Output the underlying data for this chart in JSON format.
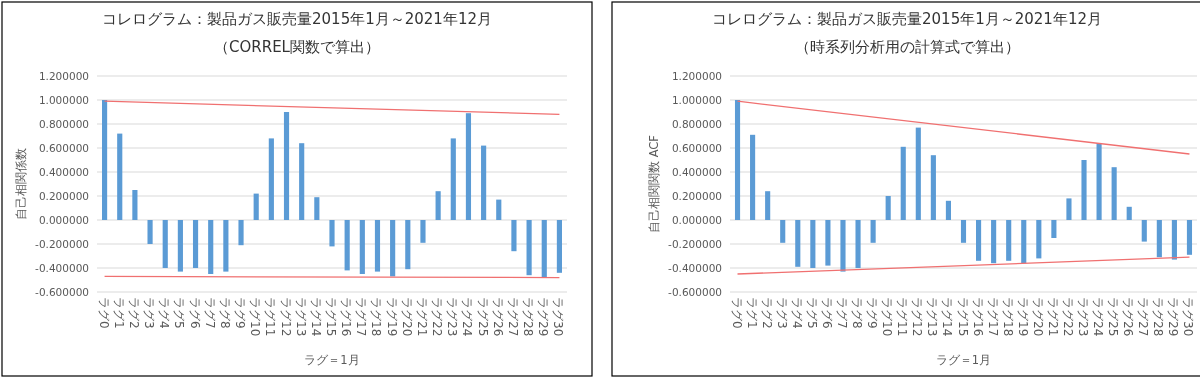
{
  "chart_data": [
    {
      "type": "bar",
      "title": "コレログラム：製品ガス販売量2015年1月～2021年12月",
      "subtitle": "（CORREL関数で算出）",
      "xlabel": "ラグ＝1月",
      "ylabel": "自己相関係数",
      "categories": [
        "ラグ0",
        "ラグ1",
        "ラグ2",
        "ラグ3",
        "ラグ4",
        "ラグ5",
        "ラグ6",
        "ラグ7",
        "ラグ8",
        "ラグ9",
        "ラグ10",
        "ラグ11",
        "ラグ12",
        "ラグ13",
        "ラグ14",
        "ラグ15",
        "ラグ16",
        "ラグ17",
        "ラグ18",
        "ラグ19",
        "ラグ20",
        "ラグ21",
        "ラグ22",
        "ラグ23",
        "ラグ24",
        "ラグ25",
        "ラグ26",
        "ラグ27",
        "ラグ28",
        "ラグ29",
        "ラグ30"
      ],
      "series": [
        {
          "color": "#5b9bd5",
          "values": [
            1.0,
            0.72,
            0.25,
            -0.2,
            -0.4,
            -0.43,
            -0.4,
            -0.45,
            -0.43,
            -0.21,
            0.22,
            0.68,
            0.9,
            0.64,
            0.19,
            -0.22,
            -0.42,
            -0.45,
            -0.43,
            -0.47,
            -0.41,
            -0.19,
            0.24,
            0.68,
            0.89,
            0.62,
            0.17,
            -0.26,
            -0.46,
            -0.48,
            -0.44
          ]
        },
        {
          "type": "line",
          "color": "#f07070",
          "values": [
            0.99,
            null,
            null,
            null,
            null,
            null,
            null,
            null,
            null,
            null,
            null,
            null,
            null,
            null,
            null,
            null,
            null,
            null,
            null,
            null,
            null,
            null,
            null,
            null,
            null,
            null,
            null,
            null,
            null,
            null,
            0.88
          ]
        },
        {
          "type": "line",
          "color": "#f07070",
          "values": [
            -0.47,
            null,
            null,
            null,
            null,
            null,
            null,
            null,
            null,
            null,
            null,
            null,
            null,
            null,
            null,
            null,
            null,
            null,
            null,
            null,
            null,
            null,
            null,
            null,
            null,
            null,
            null,
            null,
            null,
            null,
            -0.48
          ]
        }
      ],
      "ylim": [
        -0.6,
        1.2
      ],
      "yticks": [
        {
          "value": -0.6,
          "label": "-0.600000"
        },
        {
          "value": -0.4,
          "label": "-0.400000"
        },
        {
          "value": -0.2,
          "label": "-0.200000"
        },
        {
          "value": 0,
          "label": "0.000000"
        },
        {
          "value": 0.2,
          "label": "0.200000"
        },
        {
          "value": 0.4,
          "label": "0.400000"
        },
        {
          "value": 0.6,
          "label": "0.600000"
        },
        {
          "value": 0.8,
          "label": "0.800000"
        },
        {
          "value": 1.0,
          "label": "1.000000"
        },
        {
          "value": 1.2,
          "label": "1.200000"
        }
      ],
      "grid": "y"
    },
    {
      "type": "bar",
      "title": "コレログラム：製品ガス販売量2015年1月～2021年12月",
      "subtitle": "（時系列分析用の計算式で算出）",
      "xlabel": "ラグ＝1月",
      "ylabel": "自己相関関数 ACF",
      "categories": [
        "ラグ0",
        "ラグ1",
        "ラグ2",
        "ラグ3",
        "ラグ4",
        "ラグ5",
        "ラグ6",
        "ラグ7",
        "ラグ8",
        "ラグ9",
        "ラグ10",
        "ラグ11",
        "ラグ12",
        "ラグ13",
        "ラグ14",
        "ラグ15",
        "ラグ16",
        "ラグ17",
        "ラグ18",
        "ラグ19",
        "ラグ20",
        "ラグ21",
        "ラグ22",
        "ラグ23",
        "ラグ24",
        "ラグ25",
        "ラグ26",
        "ラグ27",
        "ラグ28",
        "ラグ29",
        "ラグ30"
      ],
      "series": [
        {
          "color": "#5b9bd5",
          "values": [
            1.0,
            0.71,
            0.24,
            -0.19,
            -0.39,
            -0.4,
            -0.38,
            -0.43,
            -0.4,
            -0.19,
            0.2,
            0.61,
            0.77,
            0.54,
            0.16,
            -0.19,
            -0.34,
            -0.36,
            -0.34,
            -0.36,
            -0.32,
            -0.15,
            0.18,
            0.5,
            0.64,
            0.44,
            0.11,
            -0.18,
            -0.31,
            -0.33,
            -0.29
          ]
        },
        {
          "type": "line",
          "color": "#f07070",
          "values": [
            0.99,
            null,
            null,
            null,
            null,
            null,
            null,
            null,
            null,
            null,
            null,
            null,
            null,
            null,
            null,
            null,
            null,
            null,
            null,
            null,
            null,
            null,
            null,
            null,
            null,
            null,
            null,
            null,
            null,
            null,
            0.55
          ]
        },
        {
          "type": "line",
          "color": "#f07070",
          "values": [
            -0.45,
            null,
            null,
            null,
            null,
            null,
            null,
            null,
            null,
            null,
            null,
            null,
            null,
            null,
            null,
            null,
            null,
            null,
            null,
            null,
            null,
            null,
            null,
            null,
            null,
            null,
            null,
            null,
            null,
            null,
            -0.31
          ]
        }
      ],
      "ylim": [
        -0.6,
        1.2
      ],
      "yticks": [
        {
          "value": -0.6,
          "label": "-0.600000"
        },
        {
          "value": -0.4,
          "label": "-0.400000"
        },
        {
          "value": -0.2,
          "label": "-0.200000"
        },
        {
          "value": 0,
          "label": "0.000000"
        },
        {
          "value": 0.2,
          "label": "0.200000"
        },
        {
          "value": 0.4,
          "label": "0.400000"
        },
        {
          "value": 0.6,
          "label": "0.600000"
        },
        {
          "value": 0.8,
          "label": "0.800000"
        },
        {
          "value": 1.0,
          "label": "1.000000"
        },
        {
          "value": 1.2,
          "label": "1.200000"
        }
      ],
      "grid": "y"
    }
  ]
}
